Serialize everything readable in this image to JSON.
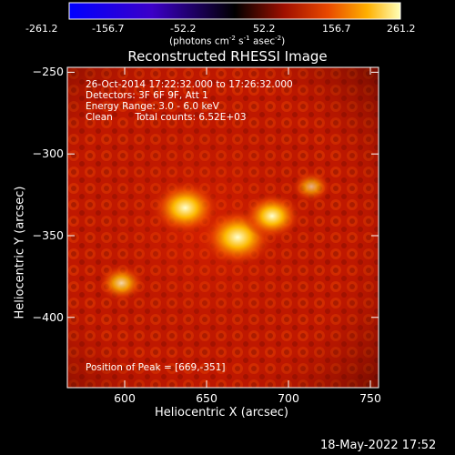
{
  "colorbar": {
    "ticks": [
      "-261.2",
      "-156.7",
      "-52.2",
      "52.2",
      "156.7",
      "261.2"
    ],
    "unit_prefix": "(photons cm",
    "unit_exp1": "-2",
    "unit_mid": " s",
    "unit_exp2": "-1",
    "unit_mid2": " asec",
    "unit_exp3": "-2",
    "unit_suffix": ")"
  },
  "chart_data": {
    "type": "heatmap",
    "title": "Reconstructed RHESSI Image",
    "xlabel": "Heliocentric X (arcsec)",
    "ylabel": "Heliocentric Y (arcsec)",
    "xlim": [
      565,
      755
    ],
    "ylim": [
      -443,
      -247
    ],
    "xticks": [
      600,
      650,
      700,
      750
    ],
    "yticks": [
      -250,
      -300,
      -350,
      -400
    ],
    "xtick_labels": [
      "600",
      "650",
      "700",
      "750"
    ],
    "ytick_labels": [
      "−250",
      "−300",
      "−350",
      "−400"
    ],
    "sources": [
      {
        "x": 669,
        "y": -351,
        "intensity": 1.0
      },
      {
        "x": 637,
        "y": -333,
        "intensity": 0.9
      },
      {
        "x": 690,
        "y": -338,
        "intensity": 0.7
      },
      {
        "x": 598,
        "y": -379,
        "intensity": 0.45
      },
      {
        "x": 714,
        "y": -320,
        "intensity": 0.3
      }
    ],
    "annotations": {
      "time": "26-Oct-2014 17:22:32.000 to 17:26:32.000",
      "detectors": "Detectors: 3F 6F 9F, Att 1",
      "energy": "Energy Range: 3.0 - 6.0 keV",
      "method": "Clean",
      "counts": "Total counts: 6.52E+03",
      "peak": "Position of Peak = [669,-351]"
    }
  },
  "footer": {
    "timestamp": "18-May-2022 17:52"
  }
}
